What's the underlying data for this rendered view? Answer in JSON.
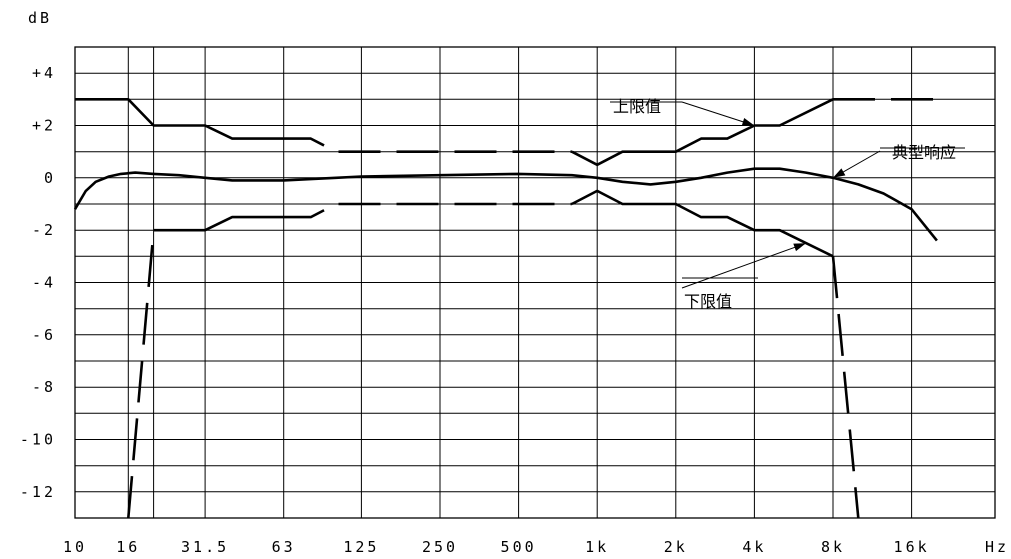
{
  "chart_data": {
    "type": "line",
    "title": "",
    "ylabel": "dB",
    "xlabel": "Hz",
    "x_scale": "log",
    "xlim": [
      10,
      20000
    ],
    "ylim": [
      -13,
      5
    ],
    "grid": true,
    "x_ticks": [
      {
        "value": 10,
        "label": "10"
      },
      {
        "value": 16,
        "label": "16"
      },
      {
        "value": 31.5,
        "label": "31.5"
      },
      {
        "value": 63,
        "label": "63"
      },
      {
        "value": 125,
        "label": "125"
      },
      {
        "value": 250,
        "label": "250"
      },
      {
        "value": 500,
        "label": "500"
      },
      {
        "value": 1000,
        "label": "1k"
      },
      {
        "value": 2000,
        "label": "2k"
      },
      {
        "value": 4000,
        "label": "4k"
      },
      {
        "value": 8000,
        "label": "8k"
      },
      {
        "value": 16000,
        "label": "16k"
      }
    ],
    "x_grid": [
      10,
      16,
      20,
      31.5,
      63,
      125,
      250,
      500,
      1000,
      2000,
      4000,
      8000,
      16000
    ],
    "y_ticks": [
      {
        "value": 4,
        "label": "+4"
      },
      {
        "value": 2,
        "label": "+2"
      },
      {
        "value": 0,
        "label": "0"
      },
      {
        "value": -2,
        "label": "-2"
      },
      {
        "value": -4,
        "label": "-4"
      },
      {
        "value": -6,
        "label": "-6"
      },
      {
        "value": -8,
        "label": "-8"
      },
      {
        "value": -10,
        "label": "-10"
      },
      {
        "value": -12,
        "label": "-12"
      }
    ],
    "y_grid": [
      5,
      4,
      3,
      2,
      1,
      0,
      -1,
      -2,
      -3,
      -4,
      -5,
      -6,
      -7,
      -8,
      -9,
      -10,
      -11,
      -12,
      -13
    ],
    "series": [
      {
        "name": "上限值",
        "segments": [
          {
            "dash": false,
            "points": [
              [
                10,
                3
              ],
              [
                16,
                3
              ],
              [
                20,
                2
              ],
              [
                31.5,
                2
              ],
              [
                40,
                1.5
              ],
              [
                63,
                1.5
              ]
            ]
          },
          {
            "dash": true,
            "points": [
              [
                63,
                1.5
              ],
              [
                80,
                1.5
              ],
              [
                100,
                1
              ],
              [
                800,
                1
              ]
            ]
          },
          {
            "dash": false,
            "points": [
              [
                800,
                1
              ],
              [
                1000,
                0.5
              ],
              [
                1250,
                1
              ],
              [
                2000,
                1
              ],
              [
                2500,
                1.5
              ],
              [
                3150,
                1.5
              ],
              [
                4000,
                2
              ],
              [
                5000,
                2
              ],
              [
                8000,
                3
              ]
            ]
          },
          {
            "dash": true,
            "points": [
              [
                8000,
                3
              ],
              [
                20000,
                3
              ]
            ]
          }
        ]
      },
      {
        "name": "典型响应",
        "segments": [
          {
            "dash": false,
            "points": [
              [
                10,
                -1.2
              ],
              [
                11,
                -0.5
              ],
              [
                12,
                -0.15
              ],
              [
                13.5,
                0.05
              ],
              [
                15,
                0.15
              ],
              [
                17,
                0.2
              ],
              [
                20,
                0.15
              ],
              [
                25,
                0.1
              ],
              [
                31.5,
                0.0
              ],
              [
                40,
                -0.1
              ],
              [
                63,
                -0.1
              ],
              [
                80,
                -0.05
              ],
              [
                100,
                0.0
              ],
              [
                125,
                0.05
              ],
              [
                250,
                0.1
              ],
              [
                500,
                0.15
              ],
              [
                800,
                0.1
              ],
              [
                1000,
                0.0
              ],
              [
                1250,
                -0.15
              ],
              [
                1600,
                -0.25
              ],
              [
                2000,
                -0.15
              ],
              [
                2500,
                0.0
              ],
              [
                3150,
                0.2
              ],
              [
                4000,
                0.35
              ],
              [
                5000,
                0.35
              ],
              [
                6300,
                0.2
              ],
              [
                8000,
                0.0
              ],
              [
                10000,
                -0.25
              ],
              [
                12500,
                -0.6
              ],
              [
                16000,
                -1.2
              ],
              [
                20000,
                -2.4
              ]
            ]
          }
        ]
      },
      {
        "name": "下限值",
        "segments": [
          {
            "dash": true,
            "points": [
              [
                16,
                -13
              ],
              [
                20,
                -2
              ]
            ]
          },
          {
            "dash": false,
            "points": [
              [
                20,
                -2
              ],
              [
                31.5,
                -2
              ],
              [
                40,
                -1.5
              ],
              [
                63,
                -1.5
              ]
            ]
          },
          {
            "dash": true,
            "points": [
              [
                63,
                -1.5
              ],
              [
                80,
                -1.5
              ],
              [
                100,
                -1
              ],
              [
                800,
                -1
              ]
            ]
          },
          {
            "dash": false,
            "points": [
              [
                800,
                -1
              ],
              [
                1000,
                -0.5
              ],
              [
                1250,
                -1
              ],
              [
                2000,
                -1
              ],
              [
                2500,
                -1.5
              ],
              [
                3150,
                -1.5
              ],
              [
                4000,
                -2
              ],
              [
                5000,
                -2
              ],
              [
                8000,
                -3
              ]
            ]
          },
          {
            "dash": true,
            "points": [
              [
                8000,
                -3
              ],
              [
                10000,
                -13
              ]
            ]
          }
        ]
      }
    ],
    "annotations": [
      {
        "text": "上限值",
        "target": [
          4000,
          2
        ]
      },
      {
        "text": "典型响应",
        "target": [
          8000,
          0
        ]
      },
      {
        "text": "下限值",
        "target": [
          6300,
          -2.5
        ]
      }
    ]
  }
}
